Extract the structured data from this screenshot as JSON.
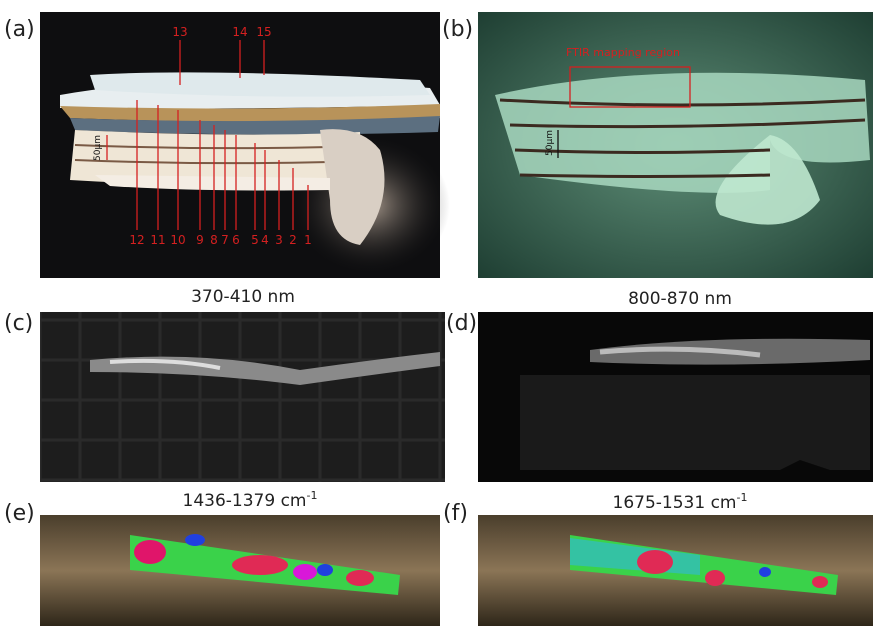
{
  "panels": {
    "a": {
      "label": "(a)",
      "layer_numbers": [
        "1",
        "2",
        "3",
        "4",
        "5",
        "6",
        "7",
        "8",
        "9",
        "10",
        "11",
        "12",
        "13",
        "14",
        "15"
      ],
      "scale_bar": "50μm"
    },
    "b": {
      "label": "(b)",
      "region_label": "FTIR mapping region",
      "scale_bar": "50μm"
    },
    "c": {
      "label": "(c)",
      "title": "370-410 nm"
    },
    "d": {
      "label": "(d)",
      "title": "800-870 nm"
    },
    "e": {
      "label": "(e)",
      "title": {
        "text": "1436-1379 cm",
        "sup": "-1"
      }
    },
    "f": {
      "label": "(f)",
      "title": {
        "text": "1675-1531 cm",
        "sup": "-1"
      }
    }
  }
}
